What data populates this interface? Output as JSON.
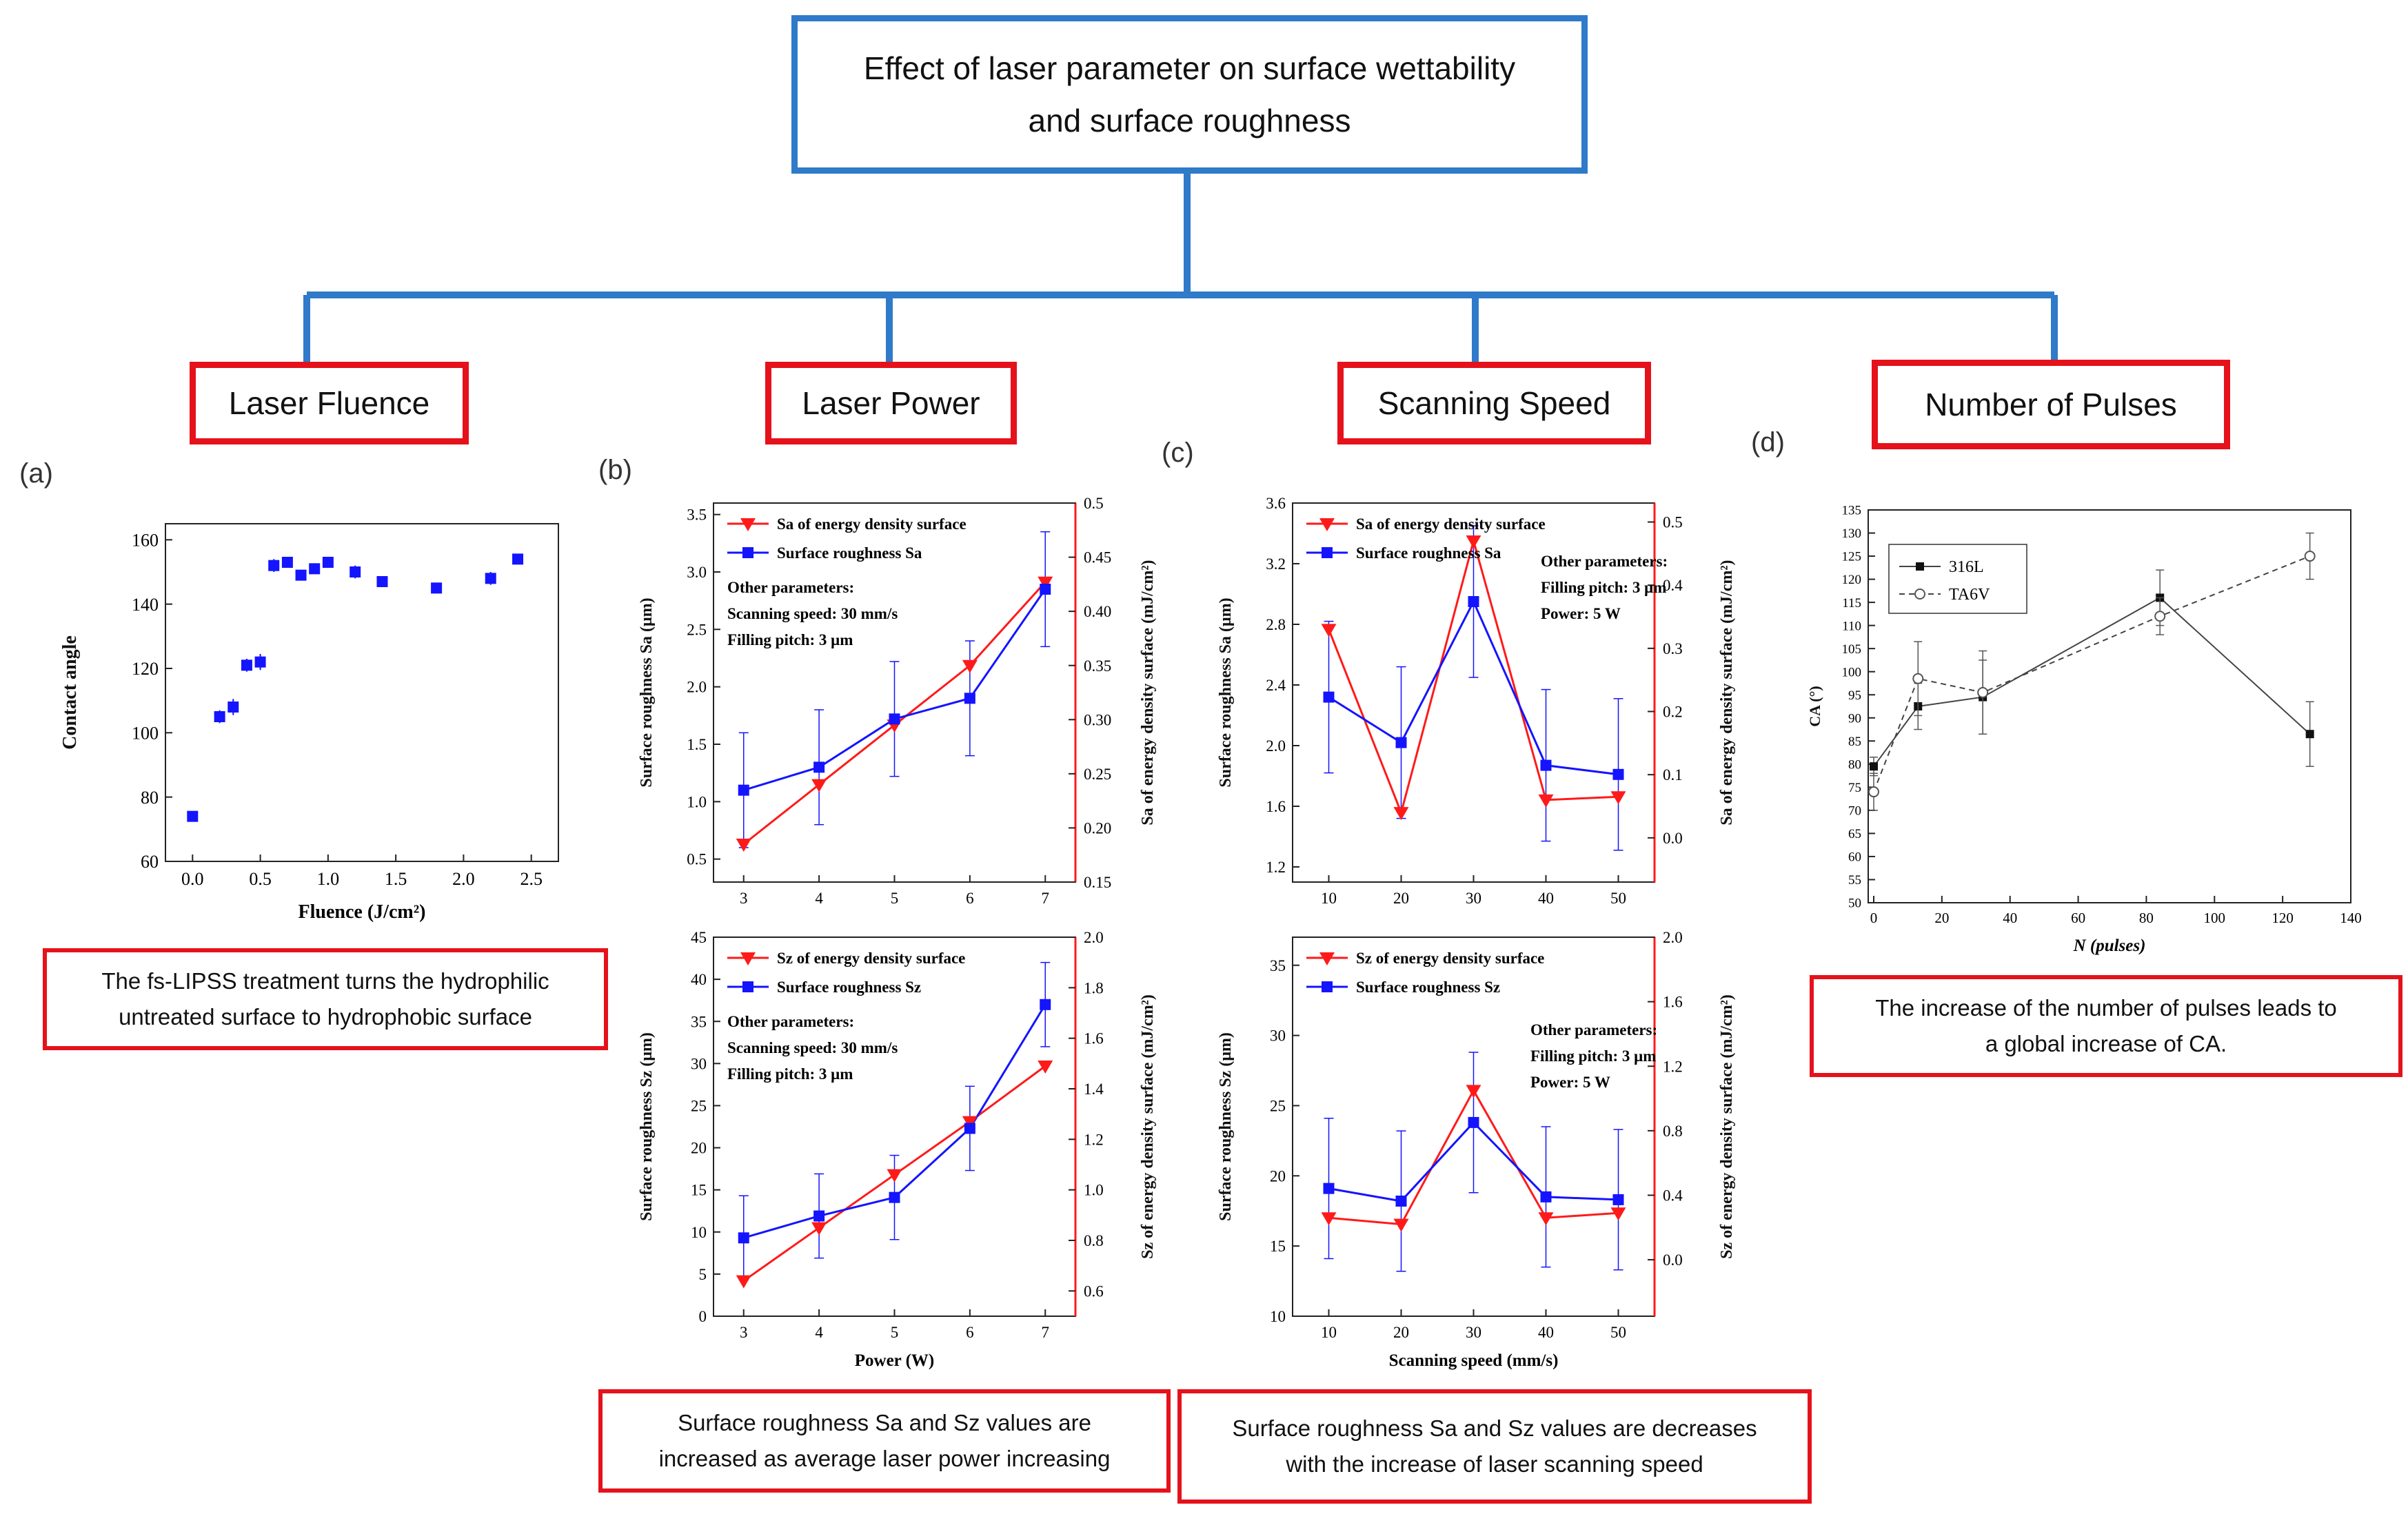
{
  "title": {
    "line1": "Effect of laser parameter on surface wettability",
    "line2": "and surface roughness"
  },
  "parameters": [
    "Laser Fluence",
    "Laser Power",
    "Scanning Speed",
    "Number of Pulses"
  ],
  "panel_labels": [
    "(a)",
    "(b)",
    "(c)",
    "(d)"
  ],
  "captions": {
    "a": {
      "line1": "The fs-LIPSS treatment turns the hydrophilic",
      "line2": "untreated surface to hydrophobic surface"
    },
    "b": {
      "line1": "Surface roughness Sa and Sz values are",
      "line2": "increased as average laser power increasing"
    },
    "c": {
      "line1": "Surface roughness Sa and Sz values are decreases",
      "line2": "with the increase of laser scanning speed"
    },
    "d": {
      "line1": "The increase of the number of pulses leads to",
      "line2": "a global increase of CA."
    }
  },
  "colors": {
    "blue_line": "#2f7ac9",
    "red_box": "#e5121b",
    "series_blue": "#1414ff",
    "series_red": "#ff1a1a"
  },
  "chart_data": [
    {
      "id": "a",
      "type": "scatter",
      "xlabel": "Fluence (J/cm²)",
      "ylabel": "Contact angle",
      "xlim": [
        -0.2,
        2.7
      ],
      "ylim": [
        60,
        165
      ],
      "xticks": [
        "0.0",
        "0.5",
        "1.0",
        "1.5",
        "2.0",
        "2.5"
      ],
      "yticks": [
        "60",
        "80",
        "100",
        "120",
        "140",
        "160"
      ],
      "series": [
        {
          "name": "contact angle",
          "x": [
            0.0,
            0.2,
            0.3,
            0.4,
            0.5,
            0.6,
            0.7,
            0.8,
            0.9,
            1.0,
            1.2,
            1.4,
            1.8,
            2.2,
            2.4
          ],
          "y": [
            74,
            105,
            108,
            121,
            122,
            152,
            153,
            149,
            151,
            153,
            150,
            147,
            145,
            148,
            154
          ],
          "err": [
            0,
            2,
            2.5,
            2,
            2.5,
            2,
            1.5,
            1,
            1,
            1,
            2,
            1.5,
            1,
            2,
            1
          ]
        }
      ]
    },
    {
      "id": "b-top",
      "type": "line",
      "xlabel": "",
      "ylabel": "Surface roughness Sa (μm)",
      "y2label": "Sa of energy density surface (mJ/cm²)",
      "x": [
        3,
        4,
        5,
        6,
        7
      ],
      "xlim": [
        2.6,
        7.4
      ],
      "ylim": [
        0.3,
        3.6
      ],
      "y2lim": [
        0.15,
        0.5
      ],
      "xticks": [
        "3",
        "4",
        "5",
        "6",
        "7"
      ],
      "yticks": [
        "0.5",
        "1.0",
        "1.5",
        "2.0",
        "2.5",
        "3.0",
        "3.5"
      ],
      "y2ticks": [
        "0.15",
        "0.20",
        "0.25",
        "0.30",
        "0.35",
        "0.40",
        "0.45",
        "0.5"
      ],
      "legend": [
        "Sa of energy density surface",
        "Surface roughness Sa"
      ],
      "notes": [
        "Other parameters:",
        "Scanning speed: 30 mm/s",
        "Filling pitch: 3 μm"
      ],
      "series": [
        {
          "name": "Surface roughness Sa",
          "axis": "left",
          "values": [
            1.1,
            1.3,
            1.72,
            1.9,
            2.85
          ],
          "err": [
            0.5,
            0.5,
            0.5,
            0.5,
            0.5
          ]
        },
        {
          "name": "Sa of energy density surface",
          "axis": "right",
          "values": [
            0.185,
            0.24,
            0.295,
            0.35,
            0.427
          ]
        }
      ]
    },
    {
      "id": "b-bottom",
      "type": "line",
      "xlabel": "Power (W)",
      "ylabel": "Surface roughness Sz (μm)",
      "y2label": "Sz of energy density surface (mJ/cm²)",
      "x": [
        3,
        4,
        5,
        6,
        7
      ],
      "xlim": [
        2.6,
        7.4
      ],
      "ylim": [
        0,
        45
      ],
      "y2lim": [
        0.5,
        2.0
      ],
      "xticks": [
        "3",
        "4",
        "5",
        "6",
        "7"
      ],
      "yticks": [
        "0",
        "5",
        "10",
        "15",
        "20",
        "25",
        "30",
        "35",
        "40",
        "45"
      ],
      "y2ticks": [
        "0.6",
        "0.8",
        "1.0",
        "1.2",
        "1.4",
        "1.6",
        "1.8",
        "2.0"
      ],
      "legend": [
        "Sz of energy density surface",
        "Surface roughness Sz"
      ],
      "notes": [
        "Other parameters:",
        "Scanning speed: 30 mm/s",
        "Filling pitch: 3 μm"
      ],
      "series": [
        {
          "name": "Surface roughness Sz",
          "axis": "left",
          "values": [
            9.3,
            11.9,
            14.1,
            22.3,
            37
          ],
          "err": [
            5,
            5,
            5,
            5,
            5
          ]
        },
        {
          "name": "Sz of energy density surface",
          "axis": "right",
          "values": [
            0.64,
            0.85,
            1.06,
            1.27,
            1.49
          ]
        }
      ]
    },
    {
      "id": "c-top",
      "type": "line",
      "xlabel": "",
      "ylabel": "Surface roughness Sa (μm)",
      "y2label": "Sa of energy density surface (mJ/cm²)",
      "x": [
        10,
        20,
        30,
        40,
        50
      ],
      "xlim": [
        5,
        55
      ],
      "ylim": [
        1.1,
        3.6
      ],
      "y2lim": [
        -0.07,
        0.53
      ],
      "xticks": [
        "10",
        "20",
        "30",
        "40",
        "50"
      ],
      "yticks": [
        "1.2",
        "1.6",
        "2.0",
        "2.4",
        "2.8",
        "3.2",
        "3.6"
      ],
      "y2ticks": [
        "0.0",
        "0.1",
        "0.2",
        "0.3",
        "0.4",
        "0.5"
      ],
      "legend": [
        "Sa of energy density surface",
        "Surface roughness Sa"
      ],
      "notes": [
        "Other parameters:",
        "Filling pitch: 3 μm",
        "Power: 5 W"
      ],
      "series": [
        {
          "name": "Surface roughness Sa",
          "axis": "left",
          "values": [
            2.32,
            2.02,
            2.95,
            1.87,
            1.81
          ],
          "err": [
            0.5,
            0.5,
            0.5,
            0.5,
            0.5
          ]
        },
        {
          "name": "Sa of energy density surface",
          "axis": "right",
          "values": [
            0.33,
            0.04,
            0.47,
            0.06,
            0.065
          ]
        }
      ]
    },
    {
      "id": "c-bottom",
      "type": "line",
      "xlabel": "Scanning speed (mm/s)",
      "ylabel": "Surface roughness Sz (μm)",
      "y2label": "Sz of energy density surface (mJ/cm²)",
      "x": [
        10,
        20,
        30,
        40,
        50
      ],
      "xlim": [
        5,
        55
      ],
      "ylim": [
        10,
        37
      ],
      "y2lim": [
        -0.35,
        2.0
      ],
      "xticks": [
        "10",
        "20",
        "30",
        "40",
        "50"
      ],
      "yticks": [
        "10",
        "15",
        "20",
        "25",
        "30",
        "35"
      ],
      "y2ticks": [
        "0.0",
        "0.4",
        "0.8",
        "1.2",
        "1.6",
        "2.0"
      ],
      "legend": [
        "Sz of energy density surface",
        "Surface roughness Sz"
      ],
      "notes": [
        "Other parameters:",
        "Filling pitch: 3 μm",
        "Power: 5 W"
      ],
      "series": [
        {
          "name": "Surface roughness Sz",
          "axis": "left",
          "values": [
            19.1,
            18.2,
            23.8,
            18.5,
            18.3
          ],
          "err": [
            5,
            5,
            5,
            5,
            5
          ]
        },
        {
          "name": "Sz of energy density surface",
          "axis": "right",
          "values": [
            0.26,
            0.22,
            1.05,
            0.26,
            0.29
          ]
        }
      ]
    },
    {
      "id": "d",
      "type": "line",
      "xlabel": "N (pulses)",
      "ylabel": "CA (°)",
      "xlim": [
        0,
        140
      ],
      "ylim": [
        50,
        135
      ],
      "xticks": [
        "0",
        "20",
        "40",
        "60",
        "80",
        "100",
        "120",
        "140"
      ],
      "yticks": [
        "50",
        "55",
        "60",
        "65",
        "70",
        "75",
        "80",
        "85",
        "90",
        "95",
        "100",
        "105",
        "110",
        "115",
        "120",
        "125",
        "130",
        "135"
      ],
      "legend": [
        "316L",
        "TA6V"
      ],
      "series": [
        {
          "name": "316L",
          "x": [
            0,
            13,
            32,
            84,
            128
          ],
          "values": [
            79.5,
            92.5,
            94.5,
            116,
            86.5
          ],
          "err": [
            2,
            5,
            8,
            6,
            7
          ]
        },
        {
          "name": "TA6V",
          "x": [
            0,
            13,
            32,
            84,
            128
          ],
          "values": [
            74,
            98.5,
            95.5,
            112,
            125
          ],
          "err": [
            4,
            8,
            9,
            4,
            5
          ]
        }
      ]
    }
  ]
}
